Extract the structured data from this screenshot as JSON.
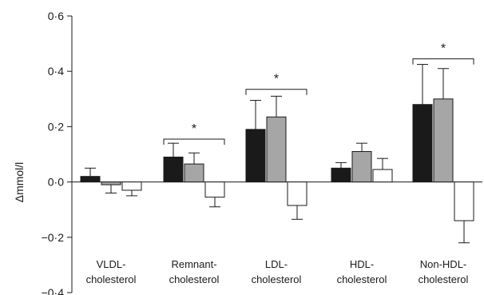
{
  "chart_data": {
    "type": "bar",
    "ylabel": "Δmmol/l",
    "ylim": [
      -0.4,
      0.6
    ],
    "yticks": [
      -0.4,
      -0.2,
      0.0,
      0.2,
      0.4,
      0.6
    ],
    "ytick_labels": [
      "−0·4",
      "−0·2",
      "0·0",
      "0·2",
      "0·4",
      "0·6"
    ],
    "categories": [
      [
        "VLDL-",
        "cholesterol"
      ],
      [
        "Remnant-",
        "cholesterol"
      ],
      [
        "LDL-",
        "cholesterol"
      ],
      [
        "HDL-",
        "cholesterol"
      ],
      [
        "Non-HDL-",
        "cholesterol"
      ]
    ],
    "series": [
      {
        "color": "#1a1a1a",
        "values": [
          0.02,
          0.09,
          0.19,
          0.05,
          0.28
        ],
        "errors": [
          0.03,
          0.05,
          0.105,
          0.02,
          0.145
        ]
      },
      {
        "color": "#a6a6a6",
        "values": [
          -0.01,
          0.065,
          0.235,
          0.11,
          0.3
        ],
        "errors": [
          0.03,
          0.04,
          0.075,
          0.03,
          0.11
        ]
      },
      {
        "color": "#ffffff",
        "values": [
          -0.03,
          -0.055,
          -0.085,
          0.045,
          -0.14
        ],
        "errors": [
          0.02,
          0.035,
          0.05,
          0.04,
          0.08
        ]
      }
    ],
    "significance": [
      {
        "category": 1,
        "label": "*",
        "y": 0.155
      },
      {
        "category": 2,
        "label": "*",
        "y": 0.335
      },
      {
        "category": 4,
        "label": "*",
        "y": 0.445
      }
    ],
    "grid": false,
    "legend": "none"
  }
}
